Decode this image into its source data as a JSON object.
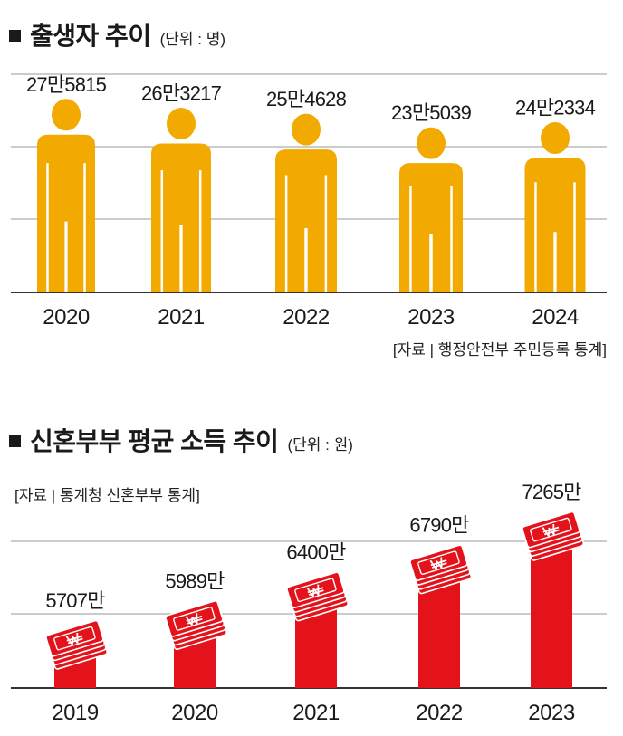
{
  "births": {
    "title": "출생자 추이",
    "unit": "(단위 : 명)",
    "source": "[자료 | 행정안전부 주민등록 통계]"
  },
  "income": {
    "title": "신혼부부 평균 소득 추이",
    "unit": "(단위 : 원)",
    "source": "[자료 | 통계청 신혼부부 통계]"
  },
  "colors": {
    "births_figure": "#F2A900",
    "income_bar": "#E3121B",
    "grid": "#999999",
    "axis": "#333333"
  },
  "chart_data": [
    {
      "type": "bar",
      "title": "출생자 추이",
      "categories": [
        "2020",
        "2021",
        "2022",
        "2023",
        "2024"
      ],
      "values": [
        275815,
        263217,
        254628,
        235039,
        242334
      ],
      "value_labels": [
        "27만5815",
        "26만3217",
        "25만4628",
        "23만5039",
        "24만2334"
      ],
      "marker": "person-icon",
      "grid": true
    },
    {
      "type": "bar",
      "title": "신혼부부 평균 소득 추이",
      "categories": [
        "2019",
        "2020",
        "2021",
        "2022",
        "2023"
      ],
      "values": [
        57070000,
        59890000,
        64000000,
        67900000,
        72650000
      ],
      "value_labels": [
        "5707만",
        "5989만",
        "6400만",
        "6790만",
        "7265만"
      ],
      "marker": "money-stack-icon",
      "grid": true
    }
  ]
}
